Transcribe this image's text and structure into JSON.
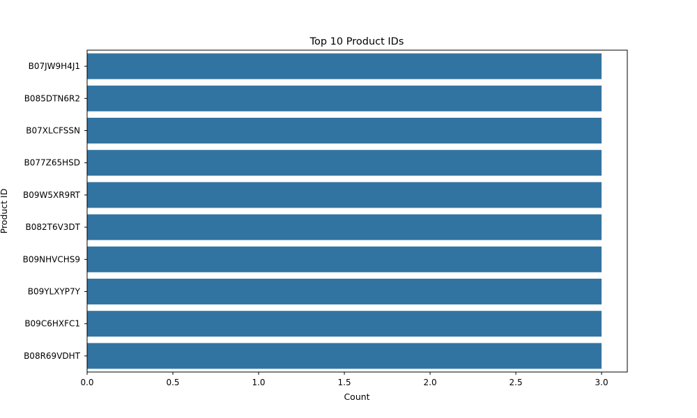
{
  "chart_data": {
    "type": "bar",
    "orientation": "horizontal",
    "title": "Top 10 Product IDs",
    "xlabel": "Count",
    "ylabel": "Product ID",
    "categories": [
      "B07JW9H4J1",
      "B085DTN6R2",
      "B07XLCFSSN",
      "B077Z65HSD",
      "B09W5XR9RT",
      "B082T6V3DT",
      "B09NHVCHS9",
      "B09YLXYP7Y",
      "B09C6HXFC1",
      "B08R69VDHT"
    ],
    "values": [
      3,
      3,
      3,
      3,
      3,
      3,
      3,
      3,
      3,
      3
    ],
    "xlim": [
      0,
      3.15
    ],
    "xticks": [
      0,
      0.5,
      1.0,
      1.5,
      2.0,
      2.5,
      3.0
    ],
    "xtick_labels": [
      "0.0",
      "0.5",
      "1.0",
      "1.5",
      "2.0",
      "2.5",
      "3.0"
    ],
    "grid": false,
    "bar_color": "#3274a1"
  }
}
